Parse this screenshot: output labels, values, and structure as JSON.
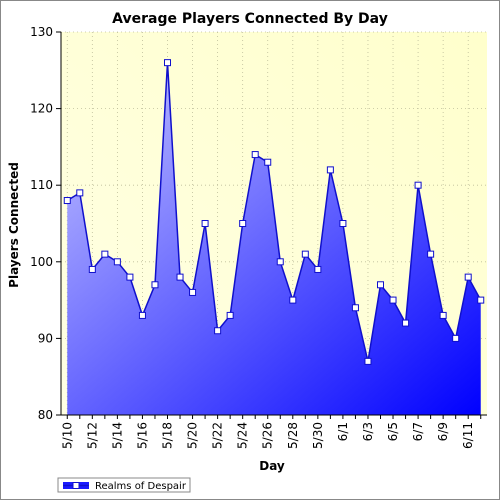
{
  "chart_data": {
    "type": "area",
    "title": "Average Players Connected By Day",
    "xlabel": "Day",
    "ylabel": "Players Connected",
    "ylim": [
      80,
      130
    ],
    "yticks": [
      80,
      90,
      100,
      110,
      120,
      130
    ],
    "grid": true,
    "legend_position": "bottom-left",
    "x": [
      "5/10",
      "5/11",
      "5/12",
      "5/13",
      "5/14",
      "5/15",
      "5/16",
      "5/17",
      "5/18",
      "5/19",
      "5/20",
      "5/21",
      "5/22",
      "5/23",
      "5/24",
      "5/25",
      "5/26",
      "5/27",
      "5/28",
      "5/29",
      "5/30",
      "5/31",
      "6/1",
      "6/2",
      "6/3",
      "6/4",
      "6/5",
      "6/6",
      "6/7",
      "6/8",
      "6/9",
      "6/10",
      "6/11",
      "6/12"
    ],
    "x_tick_labels": [
      "5/10",
      "5/12",
      "5/14",
      "5/16",
      "5/18",
      "5/20",
      "5/22",
      "5/24",
      "5/26",
      "5/28",
      "5/30",
      "6/1",
      "6/3",
      "6/5",
      "6/7",
      "6/9",
      "6/11"
    ],
    "series": [
      {
        "name": "Realms of Despair",
        "values": [
          108,
          109,
          99,
          101,
          100,
          98,
          93,
          97,
          126,
          98,
          96,
          105,
          91,
          93,
          105,
          114,
          113,
          100,
          95,
          101,
          99,
          112,
          105,
          94,
          87,
          97,
          95,
          92,
          110,
          101,
          93,
          90,
          98,
          95
        ]
      }
    ],
    "colors": {
      "line": "#1010cc",
      "fill_start": "#c8c8ff",
      "fill_end": "#0000ff",
      "plot_bg_start": "#ffffe4",
      "plot_bg_end": "#ffffcc",
      "grid": "#bdbd9a",
      "marker_fill": "#ffffff"
    }
  }
}
